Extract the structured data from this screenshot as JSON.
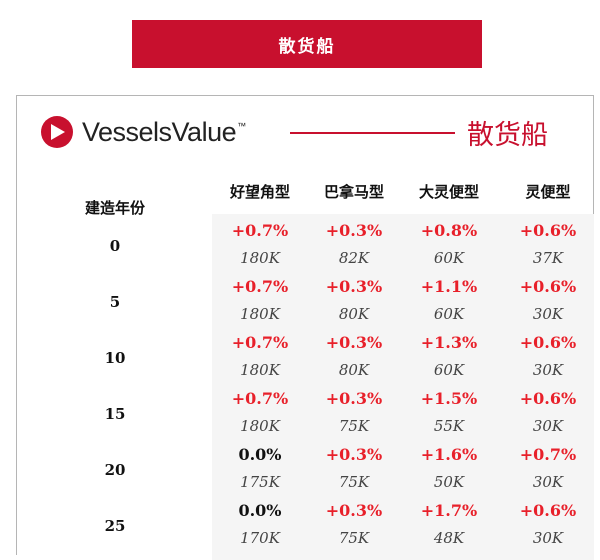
{
  "banner": {
    "title": "散货船"
  },
  "logo": {
    "brand": "VesselsValue",
    "tm": "™",
    "section_title": "散货船",
    "accent": "#c8102e"
  },
  "table": {
    "columns": [
      "建造年份",
      "好望角型",
      "巴拿马型",
      "大灵便型",
      "灵便型"
    ],
    "rows": [
      {
        "age": "0",
        "changes": [
          "+0.7%",
          "+0.3%",
          "+0.8%",
          "+0.6%"
        ],
        "values": [
          "180K",
          "82K",
          "60K",
          "37K"
        ]
      },
      {
        "age": "5",
        "changes": [
          "+0.7%",
          "+0.3%",
          "+1.1%",
          "+0.6%"
        ],
        "values": [
          "180K",
          "80K",
          "60K",
          "30K"
        ]
      },
      {
        "age": "10",
        "changes": [
          "+0.7%",
          "+0.3%",
          "+1.3%",
          "+0.6%"
        ],
        "values": [
          "180K",
          "80K",
          "60K",
          "30K"
        ]
      },
      {
        "age": "15",
        "changes": [
          "+0.7%",
          "+0.3%",
          "+1.5%",
          "+0.6%"
        ],
        "values": [
          "180K",
          "75K",
          "55K",
          "30K"
        ]
      },
      {
        "age": "20",
        "changes": [
          "0.0%",
          "+0.3%",
          "+1.6%",
          "+0.7%"
        ],
        "values": [
          "175K",
          "75K",
          "50K",
          "30K"
        ]
      },
      {
        "age": "25",
        "changes": [
          "0.0%",
          "+0.3%",
          "+1.7%",
          "+0.6%"
        ],
        "values": [
          "170K",
          "75K",
          "48K",
          "30K"
        ]
      }
    ]
  },
  "colors": {
    "positive": "#e8202a",
    "neutral": "#111111"
  }
}
